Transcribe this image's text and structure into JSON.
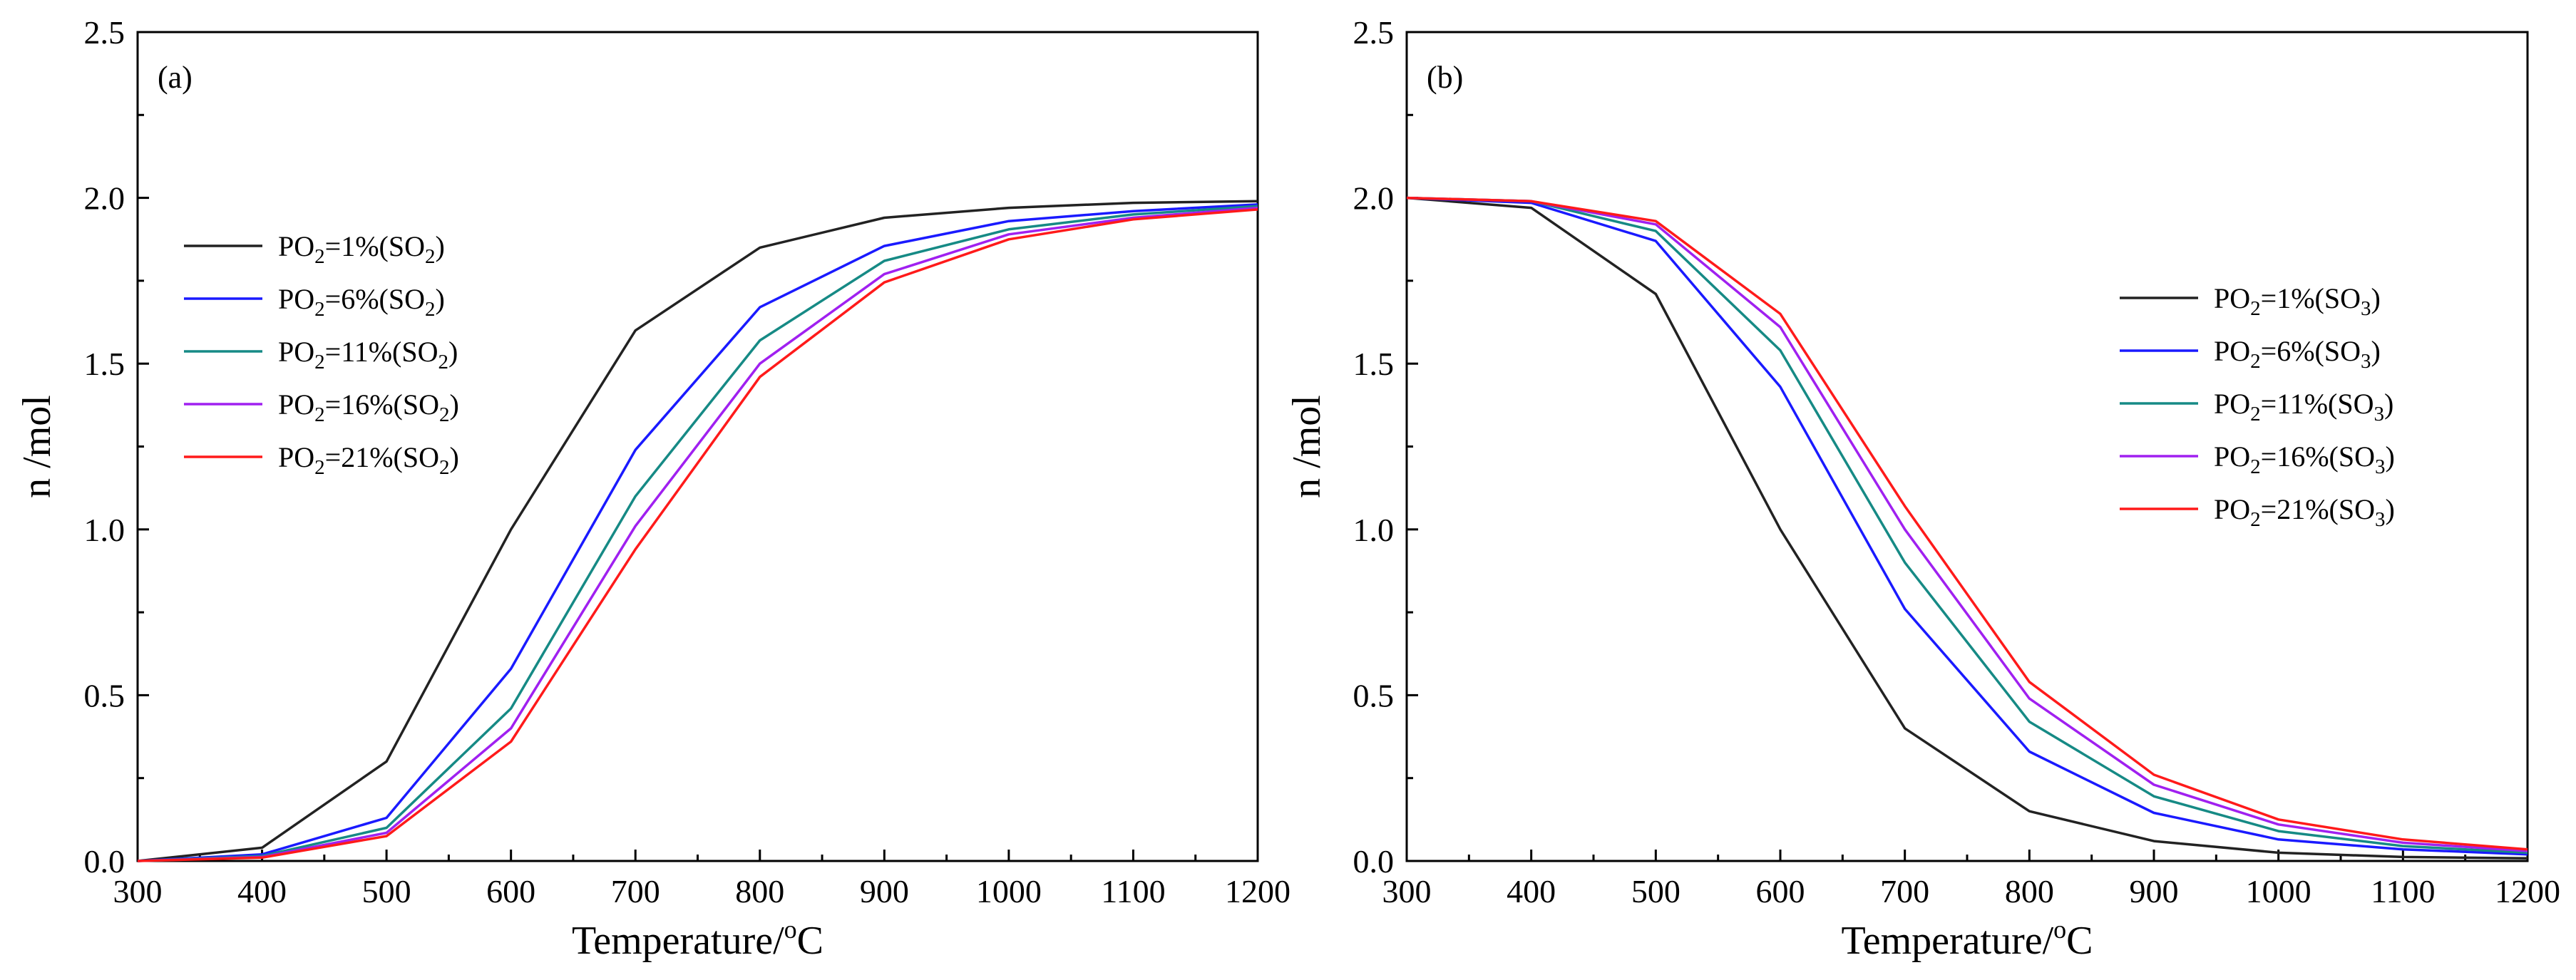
{
  "chart_data": [
    {
      "type": "line",
      "panel_label": "(a)",
      "xlabel": "Temperature/",
      "xlabel_sup": "o",
      "xlabel_suffix": "C",
      "ylabel": "n /mol",
      "xlim": [
        300,
        1200
      ],
      "ylim": [
        0,
        2.5
      ],
      "x_ticks": [
        "300",
        "400",
        "500",
        "600",
        "700",
        "800",
        "900",
        "1000",
        "1100",
        "1200"
      ],
      "y_ticks": [
        "0.0",
        "0.5",
        "1.0",
        "1.5",
        "2.0",
        "2.5"
      ],
      "legend_position": "center-left",
      "x": [
        300,
        400,
        500,
        600,
        700,
        800,
        900,
        1000,
        1100,
        1200
      ],
      "series": [
        {
          "name": "PO2=1%(SO2)",
          "legend_main": "P",
          "legend_sub": "O",
          "legend_sub2": "2",
          "legend_rest": "=1%(SO",
          "legend_end_sub": "2",
          "legend_close": ")",
          "color": "#222222",
          "values": [
            0.0,
            0.04,
            0.3,
            1.0,
            1.6,
            1.85,
            1.94,
            1.97,
            1.985,
            1.99
          ]
        },
        {
          "name": "PO2=6%(SO2)",
          "legend_main": "P",
          "legend_sub": "O",
          "legend_sub2": "2",
          "legend_rest": "=6%(SO",
          "legend_end_sub": "2",
          "legend_close": ")",
          "color": "#1a1aff",
          "values": [
            0.0,
            0.02,
            0.13,
            0.58,
            1.24,
            1.67,
            1.855,
            1.93,
            1.96,
            1.98
          ]
        },
        {
          "name": "PO2=11%(SO2)",
          "legend_main": "P",
          "legend_sub": "O",
          "legend_sub2": "2",
          "legend_rest": "=11%(SO",
          "legend_end_sub": "2",
          "legend_close": ")",
          "color": "#168a85",
          "values": [
            0.0,
            0.015,
            0.1,
            0.46,
            1.1,
            1.57,
            1.81,
            1.905,
            1.95,
            1.975
          ]
        },
        {
          "name": "PO2=16%(SO2)",
          "legend_main": "P",
          "legend_sub": "O",
          "legend_sub2": "2",
          "legend_rest": "=16%(SO",
          "legend_end_sub": "2",
          "legend_close": ")",
          "color": "#a020f0",
          "values": [
            0.0,
            0.012,
            0.085,
            0.4,
            1.01,
            1.5,
            1.77,
            1.89,
            1.94,
            1.97
          ]
        },
        {
          "name": "PO2=21%(SO2)",
          "legend_main": "P",
          "legend_sub": "O",
          "legend_sub2": "2",
          "legend_rest": "=21%(SO",
          "legend_end_sub": "2",
          "legend_close": ")",
          "color": "#ff1a1a",
          "values": [
            0.0,
            0.01,
            0.075,
            0.36,
            0.94,
            1.46,
            1.745,
            1.875,
            1.935,
            1.965
          ]
        }
      ]
    },
    {
      "type": "line",
      "panel_label": "(b)",
      "xlabel": "Temperature/",
      "xlabel_sup": "o",
      "xlabel_suffix": "C",
      "ylabel": "n /mol",
      "xlim": [
        300,
        1200
      ],
      "ylim": [
        0,
        2.5
      ],
      "x_ticks": [
        "300",
        "400",
        "500",
        "600",
        "700",
        "800",
        "900",
        "1000",
        "1100",
        "1200"
      ],
      "y_ticks": [
        "0.0",
        "0.5",
        "1.0",
        "1.5",
        "2.0",
        "2.5"
      ],
      "legend_position": "center-right",
      "x": [
        300,
        400,
        500,
        600,
        700,
        800,
        900,
        1000,
        1100,
        1200
      ],
      "series": [
        {
          "name": "PO2=1%(SO3)",
          "legend_main": "P",
          "legend_sub": "O",
          "legend_sub2": "2",
          "legend_rest": "=1%(SO",
          "legend_end_sub": "3",
          "legend_close": ")",
          "color": "#222222",
          "values": [
            2.0,
            1.97,
            1.71,
            1.0,
            0.4,
            0.15,
            0.06,
            0.025,
            0.012,
            0.008
          ]
        },
        {
          "name": "PO2=6%(SO3)",
          "legend_main": "P",
          "legend_sub": "O",
          "legend_sub2": "2",
          "legend_rest": "=6%(SO",
          "legend_end_sub": "3",
          "legend_close": ")",
          "color": "#1a1aff",
          "values": [
            2.0,
            1.985,
            1.87,
            1.43,
            0.76,
            0.33,
            0.145,
            0.065,
            0.035,
            0.02
          ]
        },
        {
          "name": "PO2=11%(SO3)",
          "legend_main": "P",
          "legend_sub": "O",
          "legend_sub2": "2",
          "legend_rest": "=11%(SO",
          "legend_end_sub": "3",
          "legend_close": ")",
          "color": "#168a85",
          "values": [
            2.0,
            1.99,
            1.9,
            1.54,
            0.9,
            0.42,
            0.195,
            0.09,
            0.045,
            0.025
          ]
        },
        {
          "name": "PO2=16%(SO3)",
          "legend_main": "P",
          "legend_sub": "O",
          "legend_sub2": "2",
          "legend_rest": "=16%(SO",
          "legend_end_sub": "3",
          "legend_close": ")",
          "color": "#a020f0",
          "values": [
            2.0,
            1.99,
            1.92,
            1.61,
            1.0,
            0.49,
            0.23,
            0.11,
            0.055,
            0.03
          ]
        },
        {
          "name": "PO2=21%(SO3)",
          "legend_main": "P",
          "legend_sub": "O",
          "legend_sub2": "2",
          "legend_rest": "=21%(SO",
          "legend_end_sub": "3",
          "legend_close": ")",
          "color": "#ff1a1a",
          "values": [
            2.0,
            1.99,
            1.93,
            1.65,
            1.07,
            0.54,
            0.26,
            0.125,
            0.065,
            0.035
          ]
        }
      ]
    }
  ]
}
